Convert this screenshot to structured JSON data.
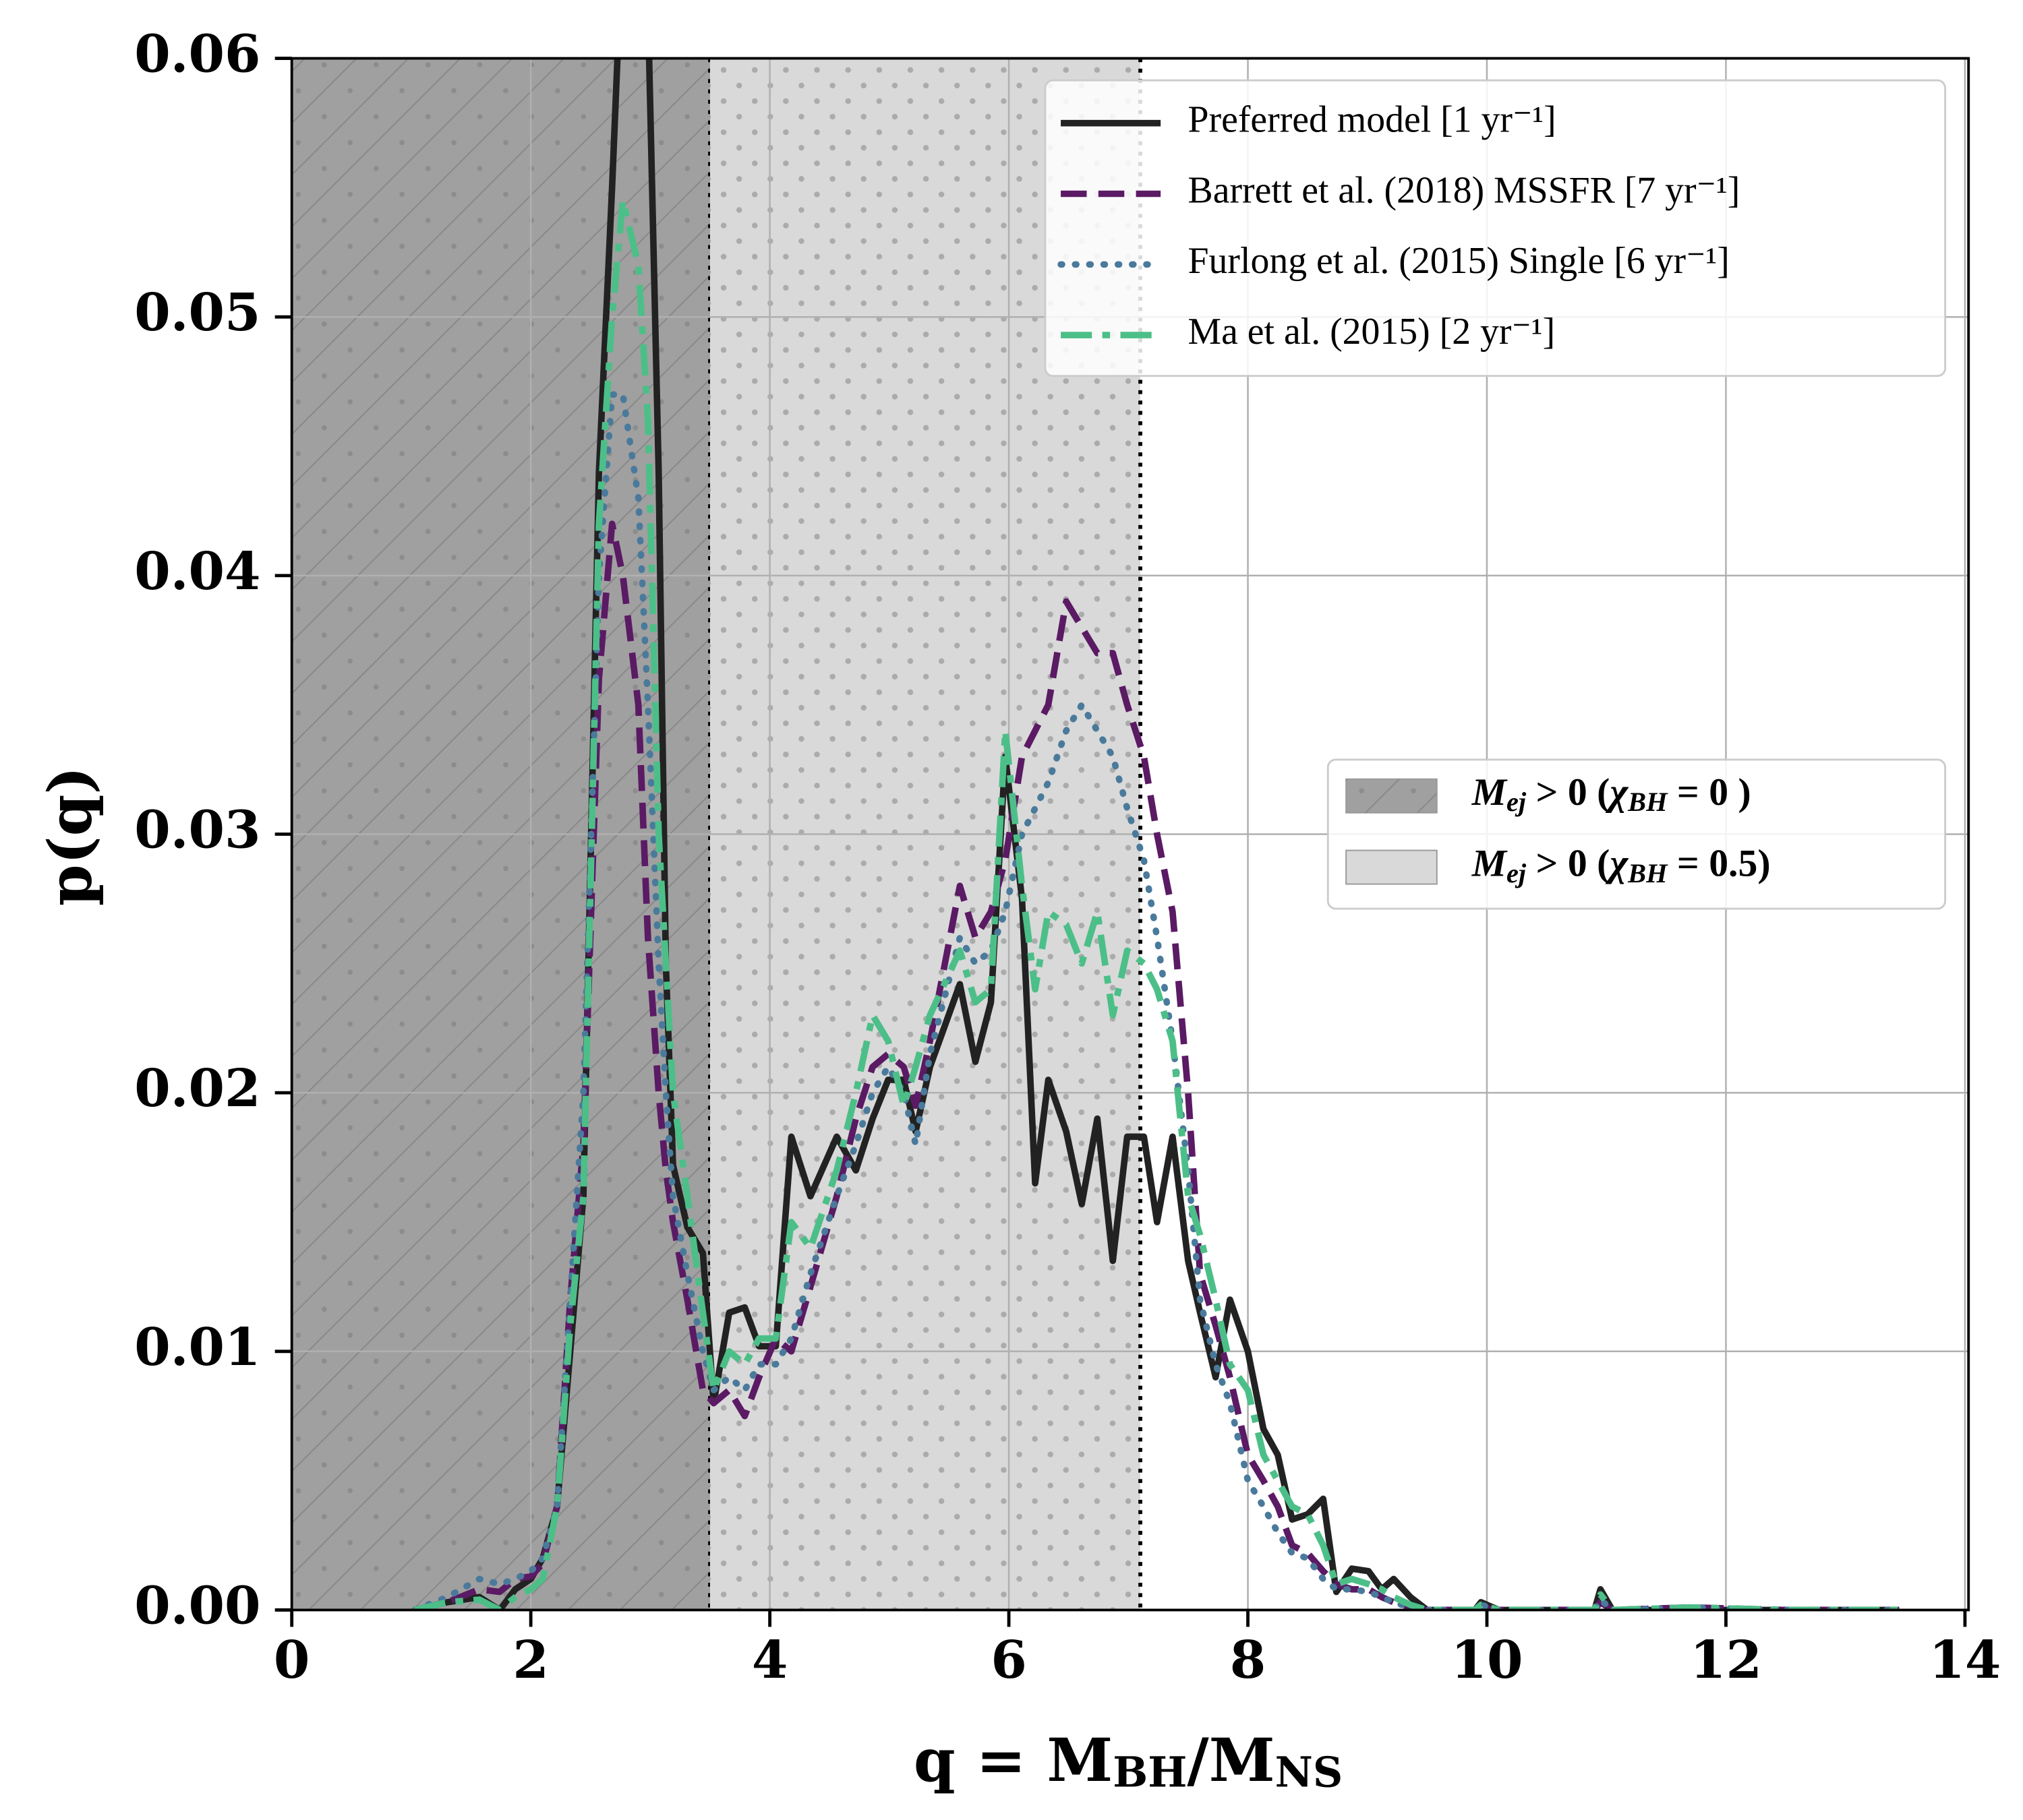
{
  "chart_data": {
    "type": "line",
    "x_label_parts": [
      "q = M",
      "BH",
      "/M",
      "NS"
    ],
    "y_label": "p(q)",
    "xlim": [
      0,
      14.03
    ],
    "ylim": [
      0,
      0.06
    ],
    "xticks": [
      0,
      2,
      4,
      6,
      8,
      10,
      12,
      14
    ],
    "yticks": [
      {
        "value": 0,
        "label": "0.00"
      },
      {
        "value": 0.01,
        "label": "0.01"
      },
      {
        "value": 0.02,
        "label": "0.02"
      },
      {
        "value": 0.03,
        "label": "0.03"
      },
      {
        "value": 0.04,
        "label": "0.04"
      },
      {
        "value": 0.05,
        "label": "0.05"
      },
      {
        "value": 0.06,
        "label": "0.06"
      }
    ],
    "grid": true,
    "legend_position": "upper right",
    "shaded_regions": [
      {
        "x": [
          0,
          3.5
        ],
        "color": "#a0a0a0",
        "pattern": "hatch",
        "label_parts": [
          "M",
          "ej",
          " > 0 (",
          "χ",
          "BH",
          " = 0 )"
        ]
      },
      {
        "x": [
          3.5,
          7.1
        ],
        "color": "#d9d9d9",
        "pattern": "dots",
        "label_parts": [
          "M",
          "ej",
          " > 0 (",
          "χ",
          "BH",
          " = 0.5)"
        ]
      }
    ],
    "region_legend_position": "center right",
    "x": [
      1.03,
      1.3,
      1.57,
      1.74,
      1.87,
      2.0,
      2.1,
      2.22,
      2.33,
      2.44,
      2.57,
      2.68,
      2.77,
      2.9,
      2.98,
      3.07,
      3.13,
      3.19,
      3.31,
      3.44,
      3.53,
      3.66,
      3.79,
      3.91,
      4.05,
      4.18,
      4.34,
      4.56,
      4.72,
      4.86,
      4.99,
      5.12,
      5.22,
      5.34,
      5.59,
      5.72,
      5.85,
      5.97,
      6.11,
      6.22,
      6.33,
      6.48,
      6.61,
      6.74,
      6.87,
      6.99,
      7.13,
      7.24,
      7.37,
      7.5,
      7.6,
      7.73,
      7.85,
      8.0,
      8.13,
      8.25,
      8.37,
      8.5,
      8.63,
      8.74,
      8.87,
      9.01,
      9.12,
      9.22,
      9.36,
      9.5,
      9.9,
      9.95,
      10.1,
      10.9,
      10.95,
      11.05,
      11.7,
      12.5,
      13.45
    ],
    "series": [
      {
        "name": "Preferred model [1 yr⁻¹]",
        "color": "#222222",
        "style": "solid",
        "values": [
          0,
          0.0003,
          0.0005,
          0,
          0.0008,
          0.0012,
          0.002,
          0.004,
          0.01,
          0.016,
          0.044,
          0.055,
          0.065,
          0.07,
          0.062,
          0.044,
          0.025,
          0.0172,
          0.0148,
          0.0138,
          0.008,
          0.0115,
          0.0117,
          0.0102,
          0.0102,
          0.0183,
          0.016,
          0.0183,
          0.017,
          0.019,
          0.0205,
          0.0205,
          0.0185,
          0.021,
          0.0242,
          0.0212,
          0.0235,
          0.033,
          0.0275,
          0.0165,
          0.0205,
          0.0185,
          0.0157,
          0.019,
          0.0135,
          0.0183,
          0.0183,
          0.015,
          0.0183,
          0.0135,
          0.0115,
          0.009,
          0.012,
          0.01,
          0.007,
          0.006,
          0.0035,
          0.0037,
          0.0043,
          0.0007,
          0.0016,
          0.0015,
          0.0008,
          0.0012,
          0.0005,
          0,
          0,
          0.0003,
          0,
          0,
          0.0008,
          0,
          0,
          0,
          0
        ]
      },
      {
        "name": "Barrett et al. (2018) MSSFR [7 yr⁻¹]",
        "color": "#5b1a64",
        "style": "dashed",
        "values": [
          0,
          0.0003,
          0.0008,
          0.0007,
          0.0012,
          0.0013,
          0.0018,
          0.004,
          0.012,
          0.018,
          0.036,
          0.042,
          0.04,
          0.035,
          0.026,
          0.02,
          0.017,
          0.015,
          0.012,
          0.0085,
          0.008,
          0.0085,
          0.0075,
          0.009,
          0.0105,
          0.01,
          0.0125,
          0.016,
          0.019,
          0.021,
          0.0215,
          0.021,
          0.0195,
          0.022,
          0.028,
          0.026,
          0.027,
          0.029,
          0.033,
          0.034,
          0.035,
          0.039,
          0.038,
          0.037,
          0.037,
          0.035,
          0.033,
          0.03,
          0.027,
          0.02,
          0.013,
          0.011,
          0.009,
          0.006,
          0.005,
          0.004,
          0.0025,
          0.0022,
          0.0015,
          0.001,
          0.0008,
          0.0008,
          0.0005,
          0.0003,
          0.0001,
          0,
          0,
          0.0001,
          0,
          0,
          0.0003,
          0,
          0.0001,
          0,
          0
        ]
      },
      {
        "name": "Furlong et al. (2015) Single [6 yr⁻¹]",
        "color": "#4a7a9b",
        "style": "dotted",
        "values": [
          0,
          0.0005,
          0.0012,
          0.001,
          0.0012,
          0.0015,
          0.002,
          0.004,
          0.012,
          0.02,
          0.04,
          0.047,
          0.047,
          0.043,
          0.035,
          0.025,
          0.02,
          0.016,
          0.013,
          0.01,
          0.0085,
          0.009,
          0.0085,
          0.0095,
          0.0095,
          0.0105,
          0.013,
          0.016,
          0.018,
          0.02,
          0.021,
          0.02,
          0.018,
          0.0215,
          0.026,
          0.025,
          0.0255,
          0.027,
          0.03,
          0.031,
          0.032,
          0.034,
          0.035,
          0.034,
          0.033,
          0.031,
          0.029,
          0.026,
          0.022,
          0.017,
          0.012,
          0.0095,
          0.008,
          0.005,
          0.004,
          0.003,
          0.0022,
          0.002,
          0.0012,
          0.0008,
          0.0008,
          0.0007,
          0.0005,
          0.0003,
          0.0001,
          0,
          0,
          0.0002,
          0,
          0,
          0.0004,
          0,
          0.0001,
          0,
          0
        ]
      },
      {
        "name": "Ma et al. (2015) [2 yr⁻¹]",
        "color": "#4cbf88",
        "style": "dashdot",
        "values": [
          0,
          0.0003,
          0.0004,
          0,
          0.0005,
          0.0008,
          0.0012,
          0.004,
          0.011,
          0.016,
          0.042,
          0.05,
          0.0545,
          0.052,
          0.046,
          0.03,
          0.025,
          0.02,
          0.016,
          0.0115,
          0.0085,
          0.01,
          0.0095,
          0.0105,
          0.0105,
          0.015,
          0.014,
          0.017,
          0.02,
          0.023,
          0.022,
          0.0195,
          0.021,
          0.023,
          0.0255,
          0.0235,
          0.024,
          0.034,
          0.028,
          0.024,
          0.027,
          0.0265,
          0.025,
          0.027,
          0.023,
          0.0255,
          0.025,
          0.024,
          0.022,
          0.016,
          0.0145,
          0.012,
          0.0095,
          0.0085,
          0.006,
          0.005,
          0.004,
          0.0037,
          0.0025,
          0.001,
          0.0012,
          0.001,
          0.0008,
          0.0005,
          0.0002,
          0,
          0,
          0.0002,
          0,
          0,
          0.0006,
          0,
          0.0001,
          0,
          0
        ]
      }
    ]
  }
}
